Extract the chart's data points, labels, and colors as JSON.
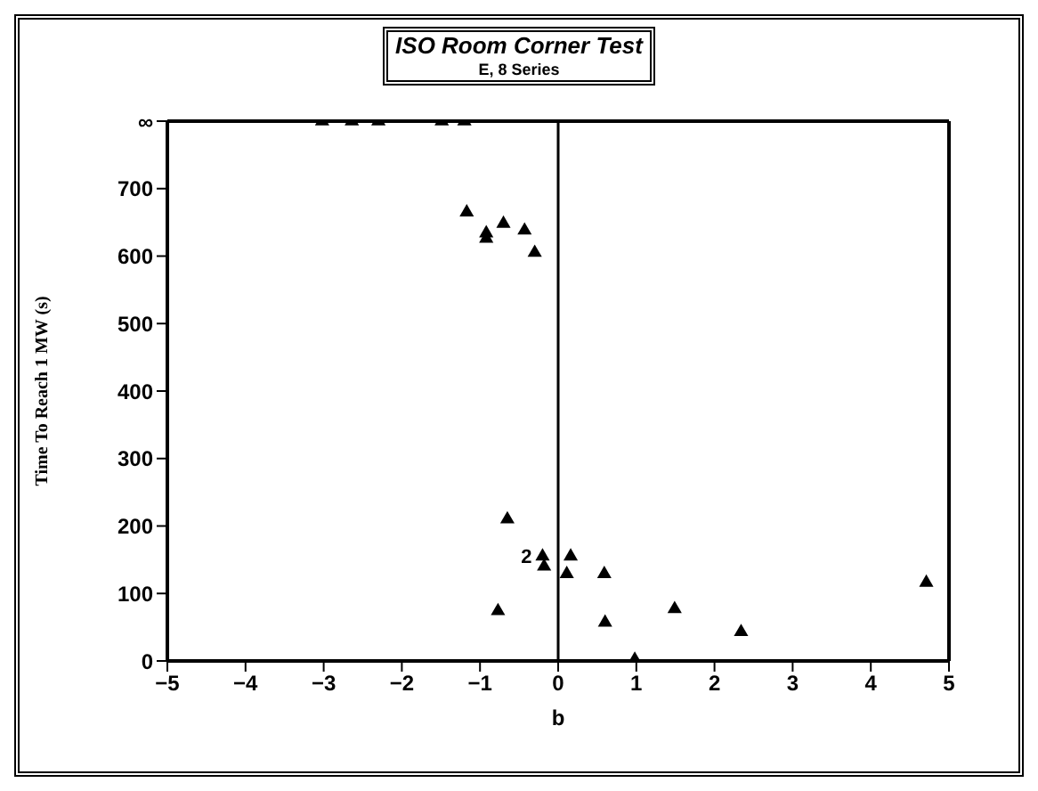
{
  "chart_data": {
    "type": "scatter",
    "title": "ISO Room Corner Test",
    "subtitle": "E, 8 Series",
    "xlabel": "b",
    "ylabel": "Time To Reach 1 MW (s)",
    "x": [
      -3.02,
      -2.64,
      -2.3,
      -1.49,
      -1.2,
      -1.17,
      -0.92,
      -0.92,
      -0.7,
      -0.43,
      -0.3,
      -0.65,
      -0.77,
      -0.2,
      -0.18,
      0.16,
      0.11,
      0.59,
      0.6,
      0.98,
      1.49,
      2.34,
      4.71
    ],
    "series": [
      {
        "color": "#000000",
        "values": [
          800,
          800,
          800,
          800,
          800,
          665,
          634,
          626,
          648,
          638,
          605,
          210,
          74,
          155,
          140,
          155,
          129,
          129,
          57,
          2,
          77,
          43,
          116
        ]
      }
    ],
    "marker": "triangle",
    "xlim": [
      -5,
      5
    ],
    "xticks": [
      -5,
      -4,
      -3,
      -2,
      -1,
      0,
      1,
      2,
      3,
      4,
      5
    ],
    "ylim": [
      0,
      800
    ],
    "yticks": [
      0,
      100,
      200,
      300,
      400,
      500,
      600,
      700,
      {
        "value": 800,
        "label": "∞"
      }
    ],
    "ref_lines": [
      {
        "axis": "x",
        "value": 0,
        "color": "#000000"
      }
    ],
    "annotations": [
      {
        "text": "2",
        "x": -0.2,
        "y": 155
      }
    ],
    "grid": false
  }
}
